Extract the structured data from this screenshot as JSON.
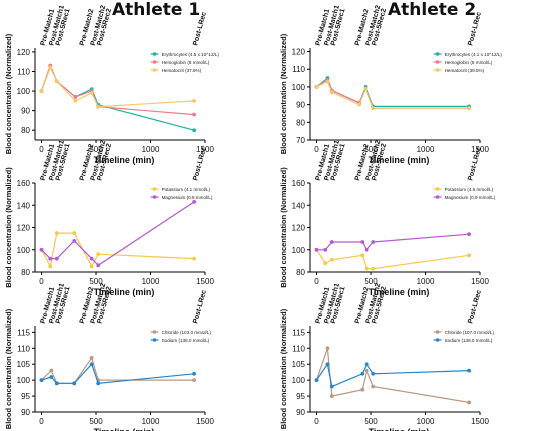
{
  "column_titles": [
    "Athlete 1",
    "Athlete 2"
  ],
  "colors": {
    "erythrocytes": "#1ab5a0",
    "hemoglobin": "#f07a88",
    "hematocrit": "#f5c96a",
    "potassium": "#f5c94a",
    "magnesium": "#b45ad2",
    "chloride": "#b99a80",
    "sodium": "#2585d0"
  },
  "chart_data": [
    {
      "type": "line",
      "panel": "athlete1-blood",
      "ylabel": "Blood concentration (Normalized)",
      "xlabel": "Timeline (min)",
      "xlim": [
        -60,
        1500
      ],
      "ylim": [
        75,
        122
      ],
      "xticks": [
        0,
        500,
        1000,
        1500
      ],
      "yticks": [
        80,
        90,
        100,
        110,
        120
      ],
      "events": [
        {
          "label": "Pre-Match1",
          "x": 0
        },
        {
          "label": "Post-Match1",
          "x": 80
        },
        {
          "label": "Post-5Rec1",
          "x": 140
        },
        {
          "label": "Pre-Match2",
          "x": 360
        },
        {
          "label": "Post-Match2",
          "x": 460
        },
        {
          "label": "Post-5Rec2",
          "x": 520
        },
        {
          "label": "Post-LRec",
          "x": 1400
        }
      ],
      "legend": {
        "position": "top-right"
      },
      "series": [
        {
          "name": "Erythrocytes (4.5 x 10^12/L)",
          "color_key": "erythrocytes",
          "x": [
            0,
            80,
            140,
            310,
            460,
            520,
            1400
          ],
          "values": [
            100,
            113,
            105,
            97,
            101,
            93,
            80
          ]
        },
        {
          "name": "Hemoglobin (8 mmol/L)",
          "color_key": "hemoglobin",
          "x": [
            0,
            80,
            140,
            310,
            460,
            520,
            1400
          ],
          "values": [
            100,
            113,
            105,
            97,
            100,
            92,
            88
          ]
        },
        {
          "name": "Hematocrit (37.6%)",
          "color_key": "hematocrit",
          "x": [
            0,
            80,
            140,
            310,
            460,
            520,
            1400
          ],
          "values": [
            100,
            112,
            105,
            95,
            99,
            92,
            95
          ]
        }
      ]
    },
    {
      "type": "line",
      "panel": "athlete2-blood",
      "ylabel": "Blood concentration (Normalized)",
      "xlabel": "Timeline (min)",
      "xlim": [
        -60,
        1500
      ],
      "ylim": [
        70,
        122
      ],
      "xticks": [
        0,
        500,
        1000,
        1500
      ],
      "yticks": [
        70,
        80,
        90,
        100,
        110,
        120
      ],
      "events": [
        {
          "label": "Pre-Match1",
          "x": 0
        },
        {
          "label": "Post-Match1",
          "x": 80
        },
        {
          "label": "Post-5Rec1",
          "x": 140
        },
        {
          "label": "Pre-Match2",
          "x": 360
        },
        {
          "label": "Post-Match2",
          "x": 460
        },
        {
          "label": "Post-5Rec2",
          "x": 520
        },
        {
          "label": "Post-LRec",
          "x": 1400
        }
      ],
      "legend": {
        "position": "top-right"
      },
      "series": [
        {
          "name": "Erythrocytes (4.1 x 10^12/L)",
          "color_key": "erythrocytes",
          "x": [
            0,
            100,
            140,
            390,
            450,
            520,
            1400
          ],
          "values": [
            100,
            105,
            98,
            91,
            100,
            89,
            89
          ]
        },
        {
          "name": "Hemoglobin (8 mmol/L)",
          "color_key": "hemoglobin",
          "x": [
            0,
            100,
            140,
            390,
            450,
            520,
            1400
          ],
          "values": [
            100,
            104,
            98,
            91,
            99,
            88,
            88
          ]
        },
        {
          "name": "Hematocrit (39.5%)",
          "color_key": "hematocrit",
          "x": [
            0,
            100,
            140,
            390,
            450,
            520,
            1400
          ],
          "values": [
            100,
            103,
            97,
            90,
            99,
            88,
            88
          ]
        }
      ]
    },
    {
      "type": "line",
      "panel": "athlete1-electrolytes-km",
      "ylabel": "Blood concentration (Normalized)",
      "xlabel": "Timeline (min)",
      "xlim": [
        -60,
        1500
      ],
      "ylim": [
        80,
        160
      ],
      "xticks": [
        0,
        500,
        1000,
        1500
      ],
      "yticks": [
        80,
        100,
        120,
        140,
        160
      ],
      "events": [
        {
          "label": "Pre-Match1",
          "x": 0
        },
        {
          "label": "Post-Match1",
          "x": 80
        },
        {
          "label": "Post-5Rec1",
          "x": 140
        },
        {
          "label": "Pre-Match2",
          "x": 360
        },
        {
          "label": "Post-Match2",
          "x": 460
        },
        {
          "label": "Post-5Rec2",
          "x": 520
        },
        {
          "label": "Post-LRec",
          "x": 1400
        }
      ],
      "legend": {
        "position": "top-right"
      },
      "series": [
        {
          "name": "Potassium (4.1 mmol/L)",
          "color_key": "potassium",
          "x": [
            0,
            80,
            140,
            300,
            460,
            520,
            1400
          ],
          "values": [
            100,
            85,
            115,
            115,
            85,
            96,
            92
          ]
        },
        {
          "name": "Magnesium (0.8 mmol/L)",
          "color_key": "magnesium",
          "x": [
            0,
            80,
            140,
            300,
            460,
            520,
            1400
          ],
          "values": [
            100,
            92,
            92,
            108,
            92,
            86,
            143
          ]
        }
      ]
    },
    {
      "type": "line",
      "panel": "athlete2-electrolytes-km",
      "ylabel": "Blood concentration (Normalized)",
      "xlabel": "Timeline (min)",
      "xlim": [
        -60,
        1500
      ],
      "ylim": [
        80,
        160
      ],
      "xticks": [
        0,
        500,
        1000,
        1500
      ],
      "yticks": [
        80,
        100,
        120,
        140,
        160
      ],
      "events": [
        {
          "label": "Pre-Match1",
          "x": 0
        },
        {
          "label": "Post-Match1",
          "x": 80
        },
        {
          "label": "Post-5Rec1",
          "x": 140
        },
        {
          "label": "Pre-Match2",
          "x": 360
        },
        {
          "label": "Post-Match2",
          "x": 460
        },
        {
          "label": "Post-5Rec2",
          "x": 520
        },
        {
          "label": "Post-LRec",
          "x": 1400
        }
      ],
      "legend": {
        "position": "top-right"
      },
      "series": [
        {
          "name": "Potassium (4.5 mmol/L)",
          "color_key": "potassium",
          "x": [
            0,
            80,
            140,
            420,
            460,
            520,
            1400
          ],
          "values": [
            100,
            88,
            91,
            95,
            83,
            83,
            95
          ]
        },
        {
          "name": "Magnesium (0.9 mmol/L)",
          "color_key": "magnesium",
          "x": [
            0,
            80,
            140,
            420,
            460,
            520,
            1400
          ],
          "values": [
            100,
            100,
            107,
            107,
            100,
            107,
            114
          ]
        }
      ]
    },
    {
      "type": "line",
      "panel": "athlete1-electrolytes-clna",
      "ylabel": "Blood concentration (Normalized)",
      "xlabel": "Timeline (min)",
      "xlim": [
        -60,
        1500
      ],
      "ylim": [
        90,
        117
      ],
      "xticks": [
        0,
        500,
        1000,
        1500
      ],
      "yticks": [
        90,
        95,
        100,
        105,
        110,
        115
      ],
      "events": [
        {
          "label": "Pre-Match1",
          "x": 0
        },
        {
          "label": "Post-Match1",
          "x": 80
        },
        {
          "label": "Post-5Rec1",
          "x": 140
        },
        {
          "label": "Pre-Match2",
          "x": 360
        },
        {
          "label": "Post-Match2",
          "x": 460
        },
        {
          "label": "Post-5Rec2",
          "x": 520
        },
        {
          "label": "Post-LRec",
          "x": 1400
        }
      ],
      "legend": {
        "position": "top-right"
      },
      "series": [
        {
          "name": "Chloride (103.0 mmol/L)",
          "color_key": "chloride",
          "x": [
            0,
            90,
            140,
            300,
            460,
            520,
            1400
          ],
          "values": [
            100,
            103,
            99,
            99,
            107,
            100,
            100
          ]
        },
        {
          "name": "Sodium (138.0 mmol/L)",
          "color_key": "sodium",
          "x": [
            0,
            90,
            140,
            300,
            460,
            520,
            1400
          ],
          "values": [
            100,
            101,
            99,
            99,
            105,
            99,
            102
          ]
        }
      ]
    },
    {
      "type": "line",
      "panel": "athlete2-electrolytes-clna",
      "ylabel": "Blood concentration (Normalized)",
      "xlabel": "Timeline (min)",
      "xlim": [
        -60,
        1500
      ],
      "ylim": [
        90,
        117
      ],
      "xticks": [
        0,
        500,
        1000,
        1500
      ],
      "yticks": [
        90,
        95,
        100,
        105,
        110,
        115
      ],
      "events": [
        {
          "label": "Pre-Match1",
          "x": 0
        },
        {
          "label": "Post-Match1",
          "x": 80
        },
        {
          "label": "Post-5Rec1",
          "x": 140
        },
        {
          "label": "Pre-Match2",
          "x": 360
        },
        {
          "label": "Post-Match2",
          "x": 460
        },
        {
          "label": "Post-5Rec2",
          "x": 520
        },
        {
          "label": "Post-LRec",
          "x": 1400
        }
      ],
      "legend": {
        "position": "top-right"
      },
      "series": [
        {
          "name": "Chloride (107.0 mmol/L)",
          "color_key": "chloride",
          "x": [
            0,
            100,
            140,
            420,
            460,
            520,
            1400
          ],
          "values": [
            100,
            110,
            95,
            97,
            103,
            98,
            93
          ]
        },
        {
          "name": "Sodium (138.0 mmol/L)",
          "color_key": "sodium",
          "x": [
            0,
            100,
            140,
            420,
            460,
            520,
            1400
          ],
          "values": [
            100,
            105,
            98,
            102,
            105,
            102,
            103
          ]
        }
      ]
    }
  ]
}
